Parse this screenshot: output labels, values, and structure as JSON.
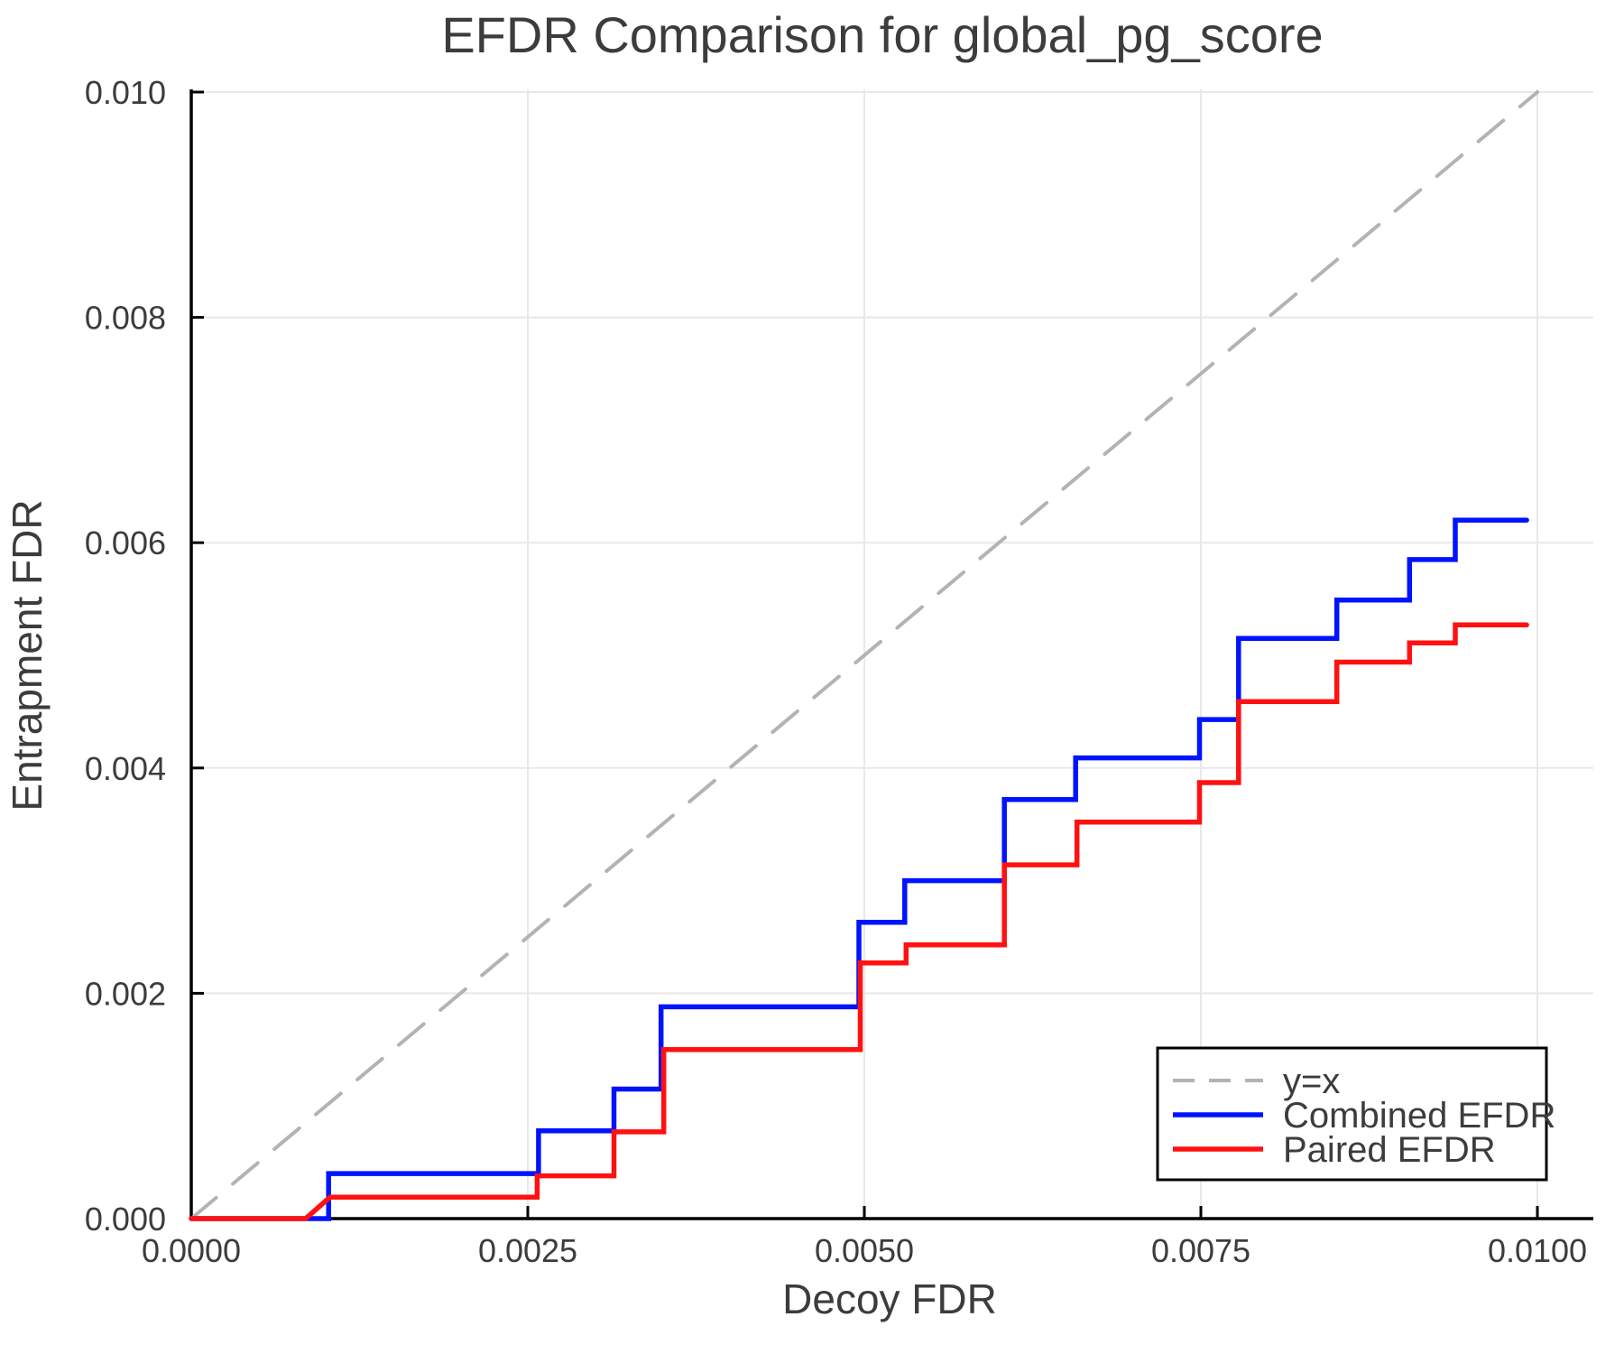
{
  "figure": {
    "title": "EFDR Comparison for global_pg_score",
    "xlabel": "Decoy FDR",
    "ylabel": "Entrapment FDR"
  },
  "chart_data": {
    "type": "line",
    "title": "EFDR Comparison for global_pg_score",
    "xlabel": "Decoy FDR",
    "ylabel": "Entrapment FDR",
    "xlim": [
      0,
      0.0104155
    ],
    "ylim": [
      0,
      0.010024
    ],
    "grid": true,
    "x_ticks": {
      "values": [
        0,
        0.0025,
        0.005,
        0.0075,
        0.01
      ],
      "labels": [
        "0.0000",
        "0.0025",
        "0.0050",
        "0.0075",
        "0.0100"
      ]
    },
    "y_ticks": {
      "values": [
        0,
        0.002,
        0.004,
        0.006,
        0.008,
        0.01
      ],
      "labels": [
        "0.000",
        "0.002",
        "0.004",
        "0.006",
        "0.008",
        "0.010"
      ]
    },
    "legend": {
      "position": "lower right",
      "frame": true,
      "entries": [
        {
          "label": "y=x",
          "series": "y=x"
        },
        {
          "label": "Combined EFDR",
          "series": "Combined EFDR"
        },
        {
          "label": "Paired EFDR",
          "series": "Paired EFDR"
        }
      ]
    },
    "series": [
      {
        "name": "y=x",
        "style": "dashed",
        "color": "#b3b3b3",
        "width": 4,
        "points": [
          [
            0,
            0
          ],
          [
            0.01,
            0.01
          ]
        ]
      },
      {
        "name": "Combined EFDR",
        "style": "solid",
        "color": "#0013ff",
        "width": 5.5,
        "points": [
          [
            0,
            0
          ],
          [
            0.00102,
            0
          ],
          [
            0.00102,
            0.0004
          ],
          [
            0.00258,
            0.0004
          ],
          [
            0.00258,
            0.00078
          ],
          [
            0.00314,
            0.00078
          ],
          [
            0.00314,
            0.00115
          ],
          [
            0.00349,
            0.00115
          ],
          [
            0.00349,
            0.00188
          ],
          [
            0.00496,
            0.00188
          ],
          [
            0.00496,
            0.00263
          ],
          [
            0.0053,
            0.00263
          ],
          [
            0.0053,
            0.003
          ],
          [
            0.00604,
            0.003
          ],
          [
            0.00604,
            0.00372
          ],
          [
            0.00657,
            0.00372
          ],
          [
            0.00657,
            0.00409
          ],
          [
            0.00749,
            0.00409
          ],
          [
            0.00749,
            0.00443
          ],
          [
            0.00778,
            0.00443
          ],
          [
            0.00778,
            0.00515
          ],
          [
            0.00851,
            0.00515
          ],
          [
            0.00851,
            0.00549
          ],
          [
            0.00905,
            0.00549
          ],
          [
            0.00905,
            0.00585
          ],
          [
            0.00939,
            0.00585
          ],
          [
            0.00939,
            0.0062
          ],
          [
            0.00992,
            0.0062
          ]
        ]
      },
      {
        "name": "Paired EFDR",
        "style": "solid",
        "color": "#ff1111",
        "width": 5.5,
        "points": [
          [
            0,
            0
          ],
          [
            0.00085,
            0
          ],
          [
            0.00103,
            0.00019
          ],
          [
            0.00257,
            0.00019
          ],
          [
            0.00257,
            0.00038
          ],
          [
            0.00314,
            0.00038
          ],
          [
            0.00314,
            0.00077
          ],
          [
            0.00351,
            0.00077
          ],
          [
            0.00351,
            0.0015
          ],
          [
            0.00497,
            0.0015
          ],
          [
            0.00497,
            0.00227
          ],
          [
            0.00531,
            0.00227
          ],
          [
            0.00531,
            0.00243
          ],
          [
            0.00604,
            0.00243
          ],
          [
            0.00604,
            0.00314
          ],
          [
            0.00658,
            0.00314
          ],
          [
            0.00658,
            0.00352
          ],
          [
            0.00749,
            0.00352
          ],
          [
            0.00749,
            0.00387
          ],
          [
            0.00778,
            0.00387
          ],
          [
            0.00778,
            0.00459
          ],
          [
            0.00851,
            0.00459
          ],
          [
            0.00851,
            0.00494
          ],
          [
            0.00905,
            0.00494
          ],
          [
            0.00905,
            0.00511
          ],
          [
            0.00939,
            0.00511
          ],
          [
            0.00939,
            0.00527
          ],
          [
            0.00992,
            0.00527
          ]
        ]
      }
    ],
    "colors": {
      "grid": "#e8e8e8",
      "spine": "#000000",
      "text": "#3c3c3c",
      "legend_border": "#000000",
      "legend_background": "#ffffff"
    }
  }
}
